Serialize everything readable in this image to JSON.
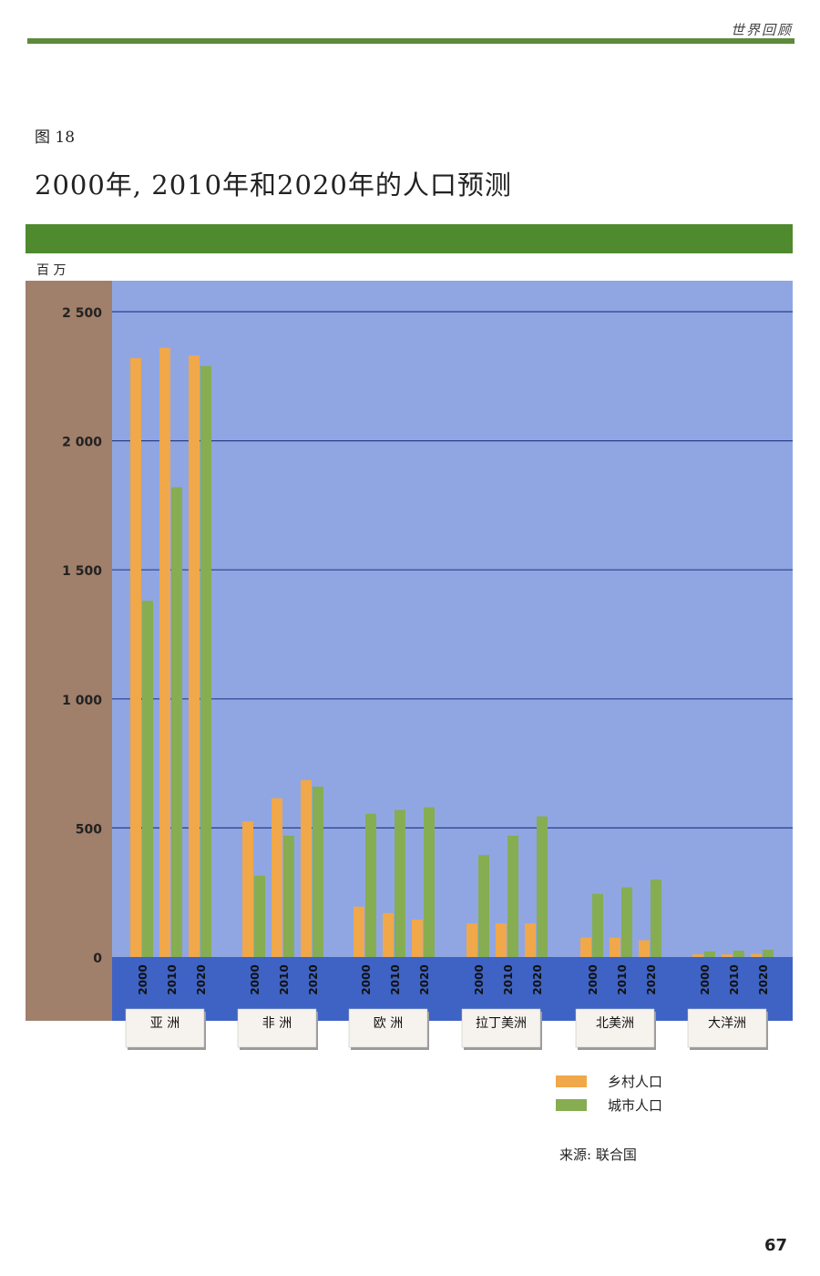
{
  "page": {
    "header_label": "世界回顾",
    "figure_number": "图 18",
    "title": "2000年, 2010年和2020年的人口预测",
    "unit_label": "百 万",
    "source": "来源: 联合国",
    "page_number": "67"
  },
  "colors": {
    "rural": "#f0a84a",
    "urban": "#86ad52",
    "plot_bg": "#90a6e2",
    "axis_bg": "#a07f6b",
    "base_band": "#3f63c4",
    "gridline": "#2a3f8e",
    "header_green": "#4f8a2e"
  },
  "chart_data": {
    "type": "bar",
    "title": "2000年, 2010年和2020年的人口预测",
    "ylabel": "百 万",
    "ylim": [
      0,
      2500
    ],
    "yticks": [
      0,
      500,
      1000,
      1500,
      2000,
      2500
    ],
    "ytick_labels": [
      "0",
      "500",
      "1 000",
      "1 500",
      "2 000",
      "2 500"
    ],
    "grid": true,
    "legend_position": "bottom-right",
    "groups": [
      "亚 洲",
      "非 洲",
      "欧 洲",
      "拉丁美洲",
      "北美洲",
      "大洋洲"
    ],
    "years": [
      "2000",
      "2010",
      "2020"
    ],
    "series": [
      {
        "name": "乡村人口",
        "color": "#f0a84a",
        "values": [
          [
            2320,
            2360,
            2330
          ],
          [
            525,
            615,
            685
          ],
          [
            195,
            170,
            145
          ],
          [
            130,
            130,
            130
          ],
          [
            75,
            75,
            65
          ],
          [
            10,
            10,
            12
          ]
        ]
      },
      {
        "name": "城市人口",
        "color": "#86ad52",
        "values": [
          [
            1380,
            1820,
            2290
          ],
          [
            315,
            470,
            660
          ],
          [
            555,
            570,
            580
          ],
          [
            395,
            470,
            545
          ],
          [
            245,
            270,
            300
          ],
          [
            22,
            25,
            28
          ]
        ]
      }
    ]
  }
}
